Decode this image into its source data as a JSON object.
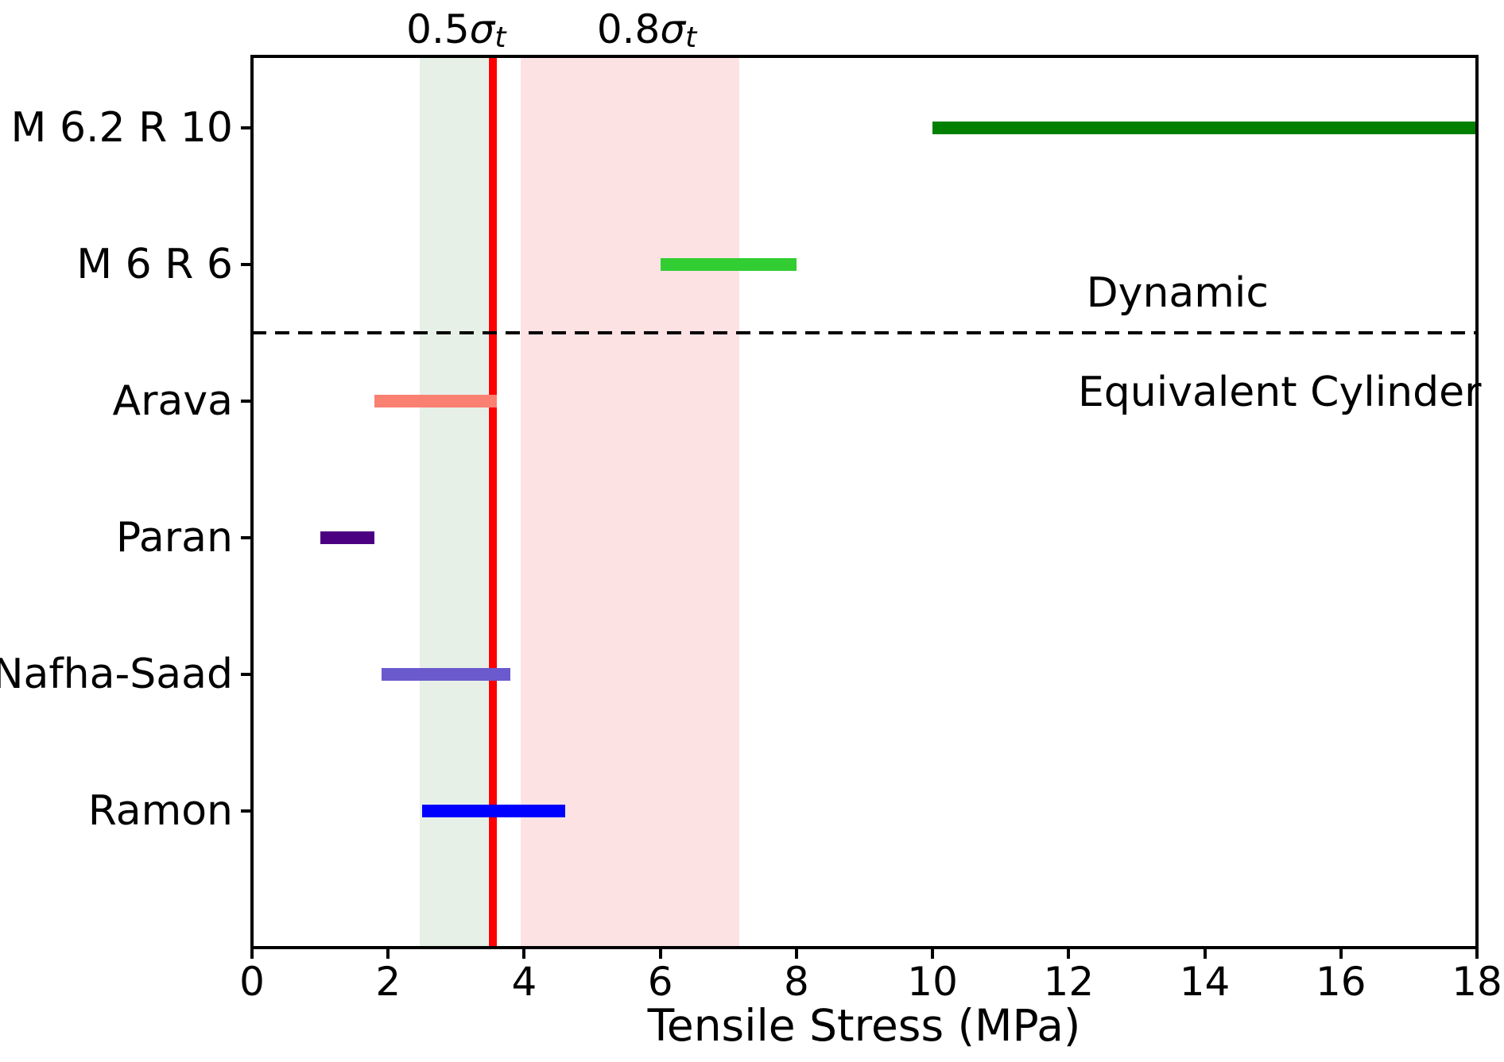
{
  "chart_data": {
    "type": "bar",
    "orientation": "horizontal-range-bars",
    "title": "",
    "xlabel": "Tensile Stress (MPa)",
    "ylabel": "",
    "xlim": [
      0,
      18
    ],
    "xticks": [
      0,
      2,
      4,
      6,
      8,
      10,
      12,
      14,
      16,
      18
    ],
    "grid": "off",
    "categories": [
      "M 6.2 R 10",
      "M 6 R 6",
      "Arava",
      "Paran",
      "Nafha-Saad",
      "Ramon"
    ],
    "series": [
      {
        "name": "M 6.2 R 10",
        "range_mpa": [
          10.0,
          18.0
        ],
        "color": "#008000",
        "group": "Dynamic"
      },
      {
        "name": "M 6 R 6",
        "range_mpa": [
          6.0,
          8.0
        ],
        "color": "#32CD32",
        "group": "Dynamic"
      },
      {
        "name": "Arava",
        "range_mpa": [
          1.8,
          3.6
        ],
        "color": "#FA8072",
        "group": "Equivalent Cylinder"
      },
      {
        "name": "Paran",
        "range_mpa": [
          1.0,
          1.8
        ],
        "color": "#4B0082",
        "group": "Equivalent Cylinder"
      },
      {
        "name": "Nafha-Saad",
        "range_mpa": [
          1.9,
          3.8
        ],
        "color": "#6A5ACD",
        "group": "Equivalent Cylinder"
      },
      {
        "name": "Ramon",
        "range_mpa": [
          2.5,
          4.6
        ],
        "color": "#0000FF",
        "group": "Equivalent Cylinder"
      }
    ],
    "bands": [
      {
        "name": "0.5-sigma-t-band",
        "from": 2.47,
        "to": 3.47,
        "color": "#E6F0E7"
      },
      {
        "name": "0.8-sigma-t-band",
        "from": 3.95,
        "to": 7.16,
        "color": "#FDE2E4"
      }
    ],
    "red_line": {
      "value": 3.54,
      "color": "#FF0000"
    },
    "separator": {
      "style": "dashed",
      "color": "#000000",
      "between": [
        "M 6 R 6",
        "Arava"
      ]
    },
    "annotations": {
      "sigma_labels": [
        {
          "pre": "0.5",
          "sigma": "σ",
          "sub": "t",
          "anchor_x": 3.0
        },
        {
          "pre": "0.8",
          "sigma": "σ",
          "sub": "t",
          "anchor_x": 5.8
        }
      ],
      "region_labels": [
        {
          "text": "Dynamic",
          "anchor_x": 13.6
        },
        {
          "text": "Equivalent Cylinder",
          "anchor_x": 15.1
        }
      ]
    }
  }
}
